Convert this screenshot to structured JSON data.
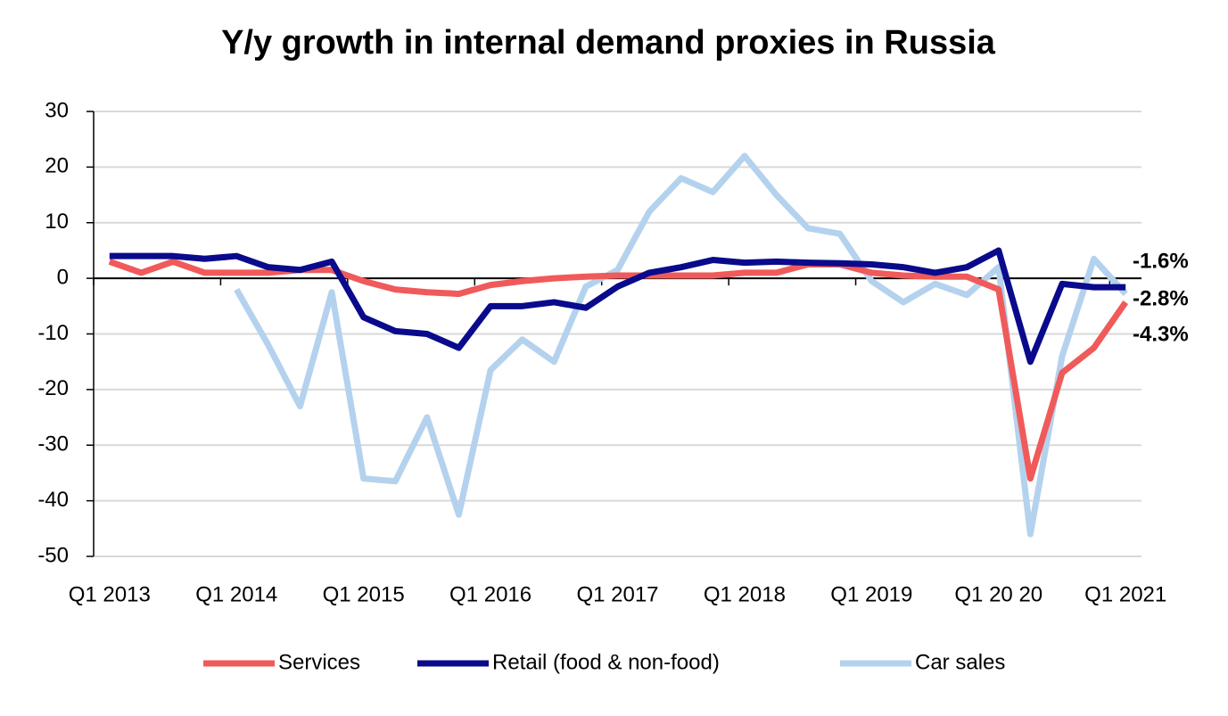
{
  "chart_data": {
    "type": "line",
    "title": "Y/y growth in internal demand proxies in Russia",
    "categories": [
      "Q1 2013",
      null,
      null,
      null,
      "Q1 2014",
      null,
      null,
      null,
      "Q1 2015",
      null,
      null,
      null,
      "Q1 2016",
      null,
      null,
      null,
      "Q1 2017",
      null,
      null,
      null,
      "Q1 2018",
      null,
      null,
      null,
      "Q1 2019",
      null,
      null,
      null,
      "Q1 20 20",
      null,
      null,
      null,
      "Q1 2021"
    ],
    "series": [
      {
        "name": "Services",
        "color": "#f05a5a",
        "end_label": "-4.3%",
        "values": [
          3,
          1,
          3,
          1,
          1,
          1,
          1.5,
          1.5,
          -0.5,
          -2,
          -2.5,
          -2.8,
          -1.2,
          -0.5,
          0,
          0.3,
          0.5,
          0.5,
          0.5,
          0.5,
          1,
          1,
          2.5,
          2.5,
          1,
          0.5,
          0.3,
          0.3,
          -2,
          -36,
          -17,
          -12.5,
          -4.3
        ]
      },
      {
        "name": "Retail (food & non-food)",
        "color": "#0a0a8c",
        "end_label": "-1.6%",
        "values": [
          4,
          4,
          4,
          3.5,
          4,
          2,
          1.5,
          3,
          -7,
          -9.5,
          -10,
          -12.5,
          -5,
          -5,
          -4.3,
          -5.3,
          -1.5,
          1,
          2,
          3.3,
          2.8,
          3,
          2.8,
          2.7,
          2.5,
          2,
          1,
          2,
          5,
          -15,
          -1,
          -1.6,
          -1.6
        ]
      },
      {
        "name": "Car sales",
        "color": "#b4d2ee",
        "end_label": "-2.8%",
        "values": [
          null,
          null,
          null,
          null,
          -2,
          -12,
          -23,
          -2.5,
          -36,
          -36.5,
          -25,
          -42.5,
          -16.5,
          -11,
          -15,
          -1.5,
          1.5,
          12,
          18,
          15.5,
          22,
          15,
          9,
          8,
          -0.5,
          -4.3,
          -1,
          -3,
          2,
          -46,
          -14,
          3.5,
          -2.8
        ]
      }
    ],
    "ylim": [
      -50,
      30
    ],
    "yticks": [
      -50,
      -40,
      -30,
      -20,
      -10,
      0,
      10,
      20,
      30
    ],
    "grid": true
  }
}
